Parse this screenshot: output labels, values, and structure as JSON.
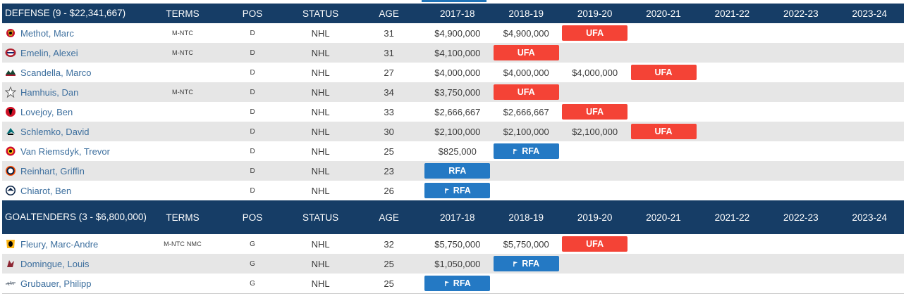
{
  "columns": {
    "terms": "TERMS",
    "pos": "POS",
    "status": "STATUS",
    "age": "AGE",
    "years": [
      "2017-18",
      "2018-19",
      "2019-20",
      "2020-21",
      "2021-22",
      "2022-23",
      "2023-24"
    ]
  },
  "colors": {
    "header_bg": "#163d66",
    "ufa": "#f44336",
    "rfa": "#2479c4",
    "link": "#3d6f9e",
    "alt_row": "#e6e6e6"
  },
  "defense": {
    "title": "DEFENSE (9 - $22,341,667)",
    "players": [
      {
        "name": "Methot, Marc",
        "team_icon": "senators-logo-icon",
        "terms": "M-NTC",
        "pos": "D",
        "status": "NHL",
        "age": "31",
        "y1": "$4,900,000",
        "y2": "$4,900,000",
        "y3_badge": "UFA"
      },
      {
        "name": "Emelin, Alexei",
        "team_icon": "canadiens-logo-icon",
        "terms": "M-NTC",
        "pos": "D",
        "status": "NHL",
        "age": "31",
        "y1": "$4,100,000",
        "y2_badge": "UFA"
      },
      {
        "name": "Scandella, Marco",
        "team_icon": "wild-logo-icon",
        "terms": "",
        "pos": "D",
        "status": "NHL",
        "age": "27",
        "y1": "$4,000,000",
        "y2": "$4,000,000",
        "y3": "$4,000,000",
        "y4_badge": "UFA"
      },
      {
        "name": "Hamhuis, Dan",
        "team_icon": "stars-logo-icon",
        "terms": "M-NTC",
        "pos": "D",
        "status": "NHL",
        "age": "34",
        "y1": "$3,750,000",
        "y2_badge": "UFA"
      },
      {
        "name": "Lovejoy, Ben",
        "team_icon": "devils-logo-icon",
        "terms": "",
        "pos": "D",
        "status": "NHL",
        "age": "33",
        "y1": "$2,666,667",
        "y2": "$2,666,667",
        "y3_badge": "UFA"
      },
      {
        "name": "Schlemko, David",
        "team_icon": "sharks-logo-icon",
        "terms": "",
        "pos": "D",
        "status": "NHL",
        "age": "30",
        "y1": "$2,100,000",
        "y2": "$2,100,000",
        "y3": "$2,100,000",
        "y4_badge": "UFA"
      },
      {
        "name": "Van Riemsdyk, Trevor",
        "team_icon": "blackhawks-logo-icon",
        "terms": "",
        "pos": "D",
        "status": "NHL",
        "age": "25",
        "y1": "$825,000",
        "y2_badge": "RFA"
      },
      {
        "name": "Reinhart, Griffin",
        "team_icon": "oilers-logo-icon",
        "terms": "",
        "pos": "D",
        "status": "NHL",
        "age": "23",
        "y1_badge": "RFA"
      },
      {
        "name": "Chiarot, Ben",
        "team_icon": "jets-logo-icon",
        "terms": "",
        "pos": "D",
        "status": "NHL",
        "age": "26",
        "y1_badge": "RFA"
      }
    ]
  },
  "goaltenders": {
    "title": "GOALTENDERS (3 - $6,800,000)",
    "players": [
      {
        "name": "Fleury, Marc-Andre",
        "team_icon": "penguins-logo-icon",
        "terms": "M-NTC NMC",
        "pos": "G",
        "status": "NHL",
        "age": "32",
        "y1": "$5,750,000",
        "y2": "$5,750,000",
        "y3_badge": "UFA"
      },
      {
        "name": "Domingue, Louis",
        "team_icon": "coyotes-logo-icon",
        "terms": "",
        "pos": "G",
        "status": "NHL",
        "age": "25",
        "y1": "$1,050,000",
        "y2_badge": "RFA"
      },
      {
        "name": "Grubauer, Philipp",
        "team_icon": "capitals-logo-icon",
        "terms": "",
        "pos": "G",
        "status": "NHL",
        "age": "25",
        "y1_badge": "RFA"
      }
    ]
  }
}
